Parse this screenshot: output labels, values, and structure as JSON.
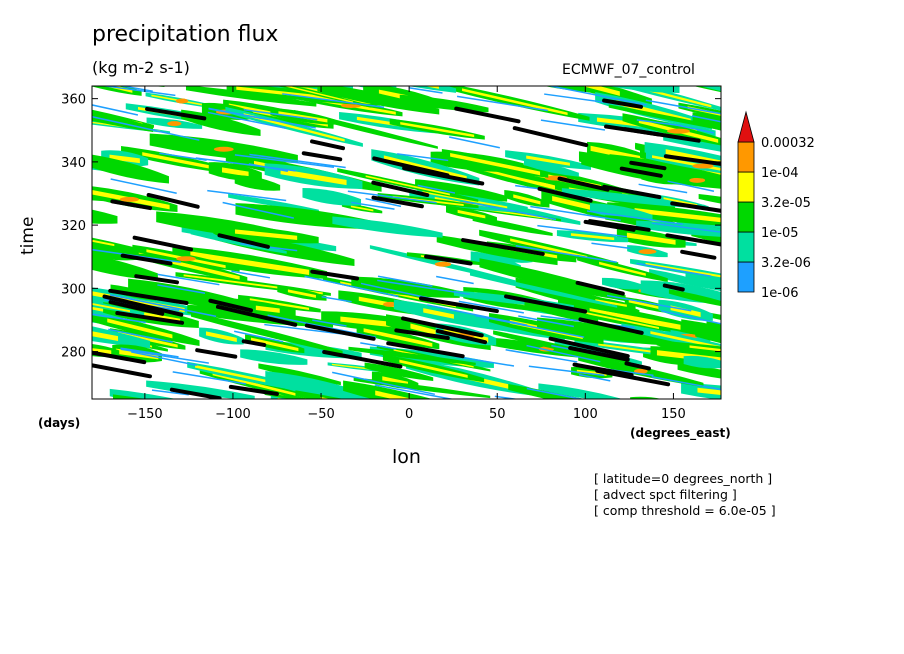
{
  "chart_data": {
    "type": "heatmap",
    "title": "precipitation flux",
    "units": "(kg m-2 s-1)",
    "run_label": "ECMWF_07_control",
    "xlabel": "lon",
    "ylabel": "time",
    "x_units": "(degrees_east)",
    "y_units": "(days)",
    "xlim": [
      -180,
      177
    ],
    "ylim": [
      265,
      364
    ],
    "x_ticks": [
      -150,
      -100,
      -50,
      0,
      50,
      100,
      150
    ],
    "y_ticks": [
      280,
      300,
      320,
      340,
      360
    ],
    "levels": [
      "1e-06",
      "3.2e-06",
      "1e-05",
      "3.2e-05",
      "1e-04",
      "0.00032"
    ],
    "colors": [
      "#1ea0ff",
      "#00e0a0",
      "#00d800",
      "#ffff00",
      "#ff9800",
      "#e01010"
    ],
    "threshold_line_color": "#000000",
    "notes": [
      "[ latitude=0 degrees_north ]",
      "[ advect spct filtering ]",
      "[ comp threshold = 6.0e-05 ]"
    ]
  }
}
